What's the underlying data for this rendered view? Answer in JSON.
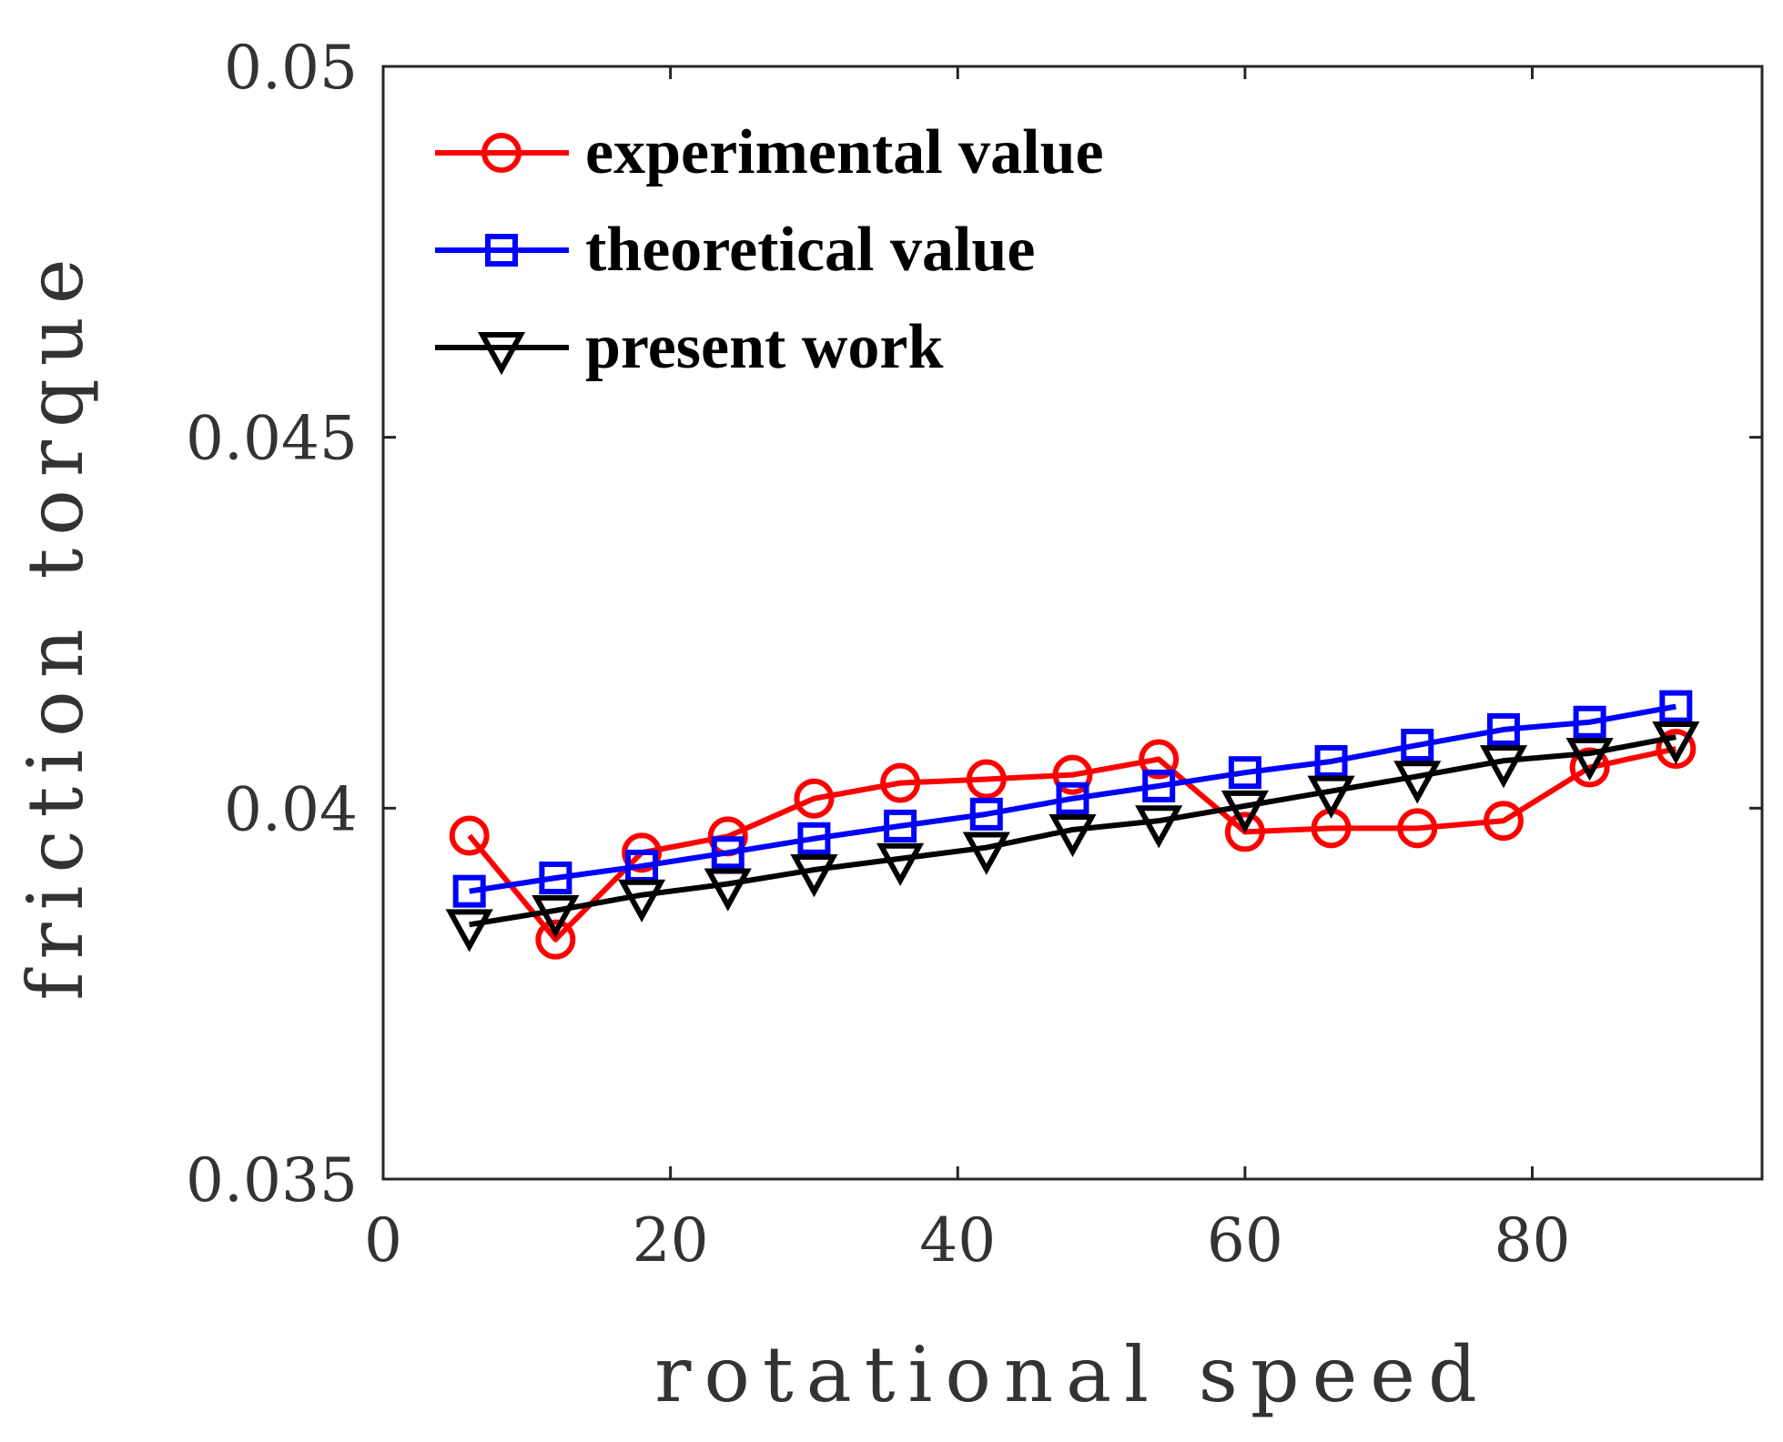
{
  "chart_data": {
    "type": "line",
    "title": "",
    "xlabel": "rotational speed",
    "ylabel": "friction torque",
    "xlim": [
      0,
      96
    ],
    "ylim": [
      0.035,
      0.05
    ],
    "xticks": [
      0,
      20,
      40,
      60,
      80
    ],
    "yticks": [
      0.035,
      0.04,
      0.045,
      0.05
    ],
    "xtick_labels": [
      "0",
      "20",
      "40",
      "60",
      "80"
    ],
    "ytick_labels": [
      "0.035",
      "0.04",
      "0.045",
      "0.05"
    ],
    "grid": false,
    "legend_position": "top-left",
    "x": [
      6,
      12,
      18,
      24,
      30,
      36,
      42,
      48,
      54,
      60,
      66,
      72,
      78,
      84,
      90
    ],
    "series": [
      {
        "name": "experimental value",
        "color": "#ff0000",
        "marker": "circle",
        "values": [
          0.03963,
          0.03823,
          0.0394,
          0.03962,
          0.04013,
          0.04034,
          0.04039,
          0.04045,
          0.04066,
          0.03968,
          0.03973,
          0.03973,
          0.03983,
          0.04055,
          0.0408
        ]
      },
      {
        "name": "theoretical value",
        "color": "#0000ff",
        "marker": "square",
        "values": [
          0.03888,
          0.03906,
          0.03922,
          0.0394,
          0.03959,
          0.03976,
          0.03992,
          0.04013,
          0.0403,
          0.04048,
          0.04063,
          0.04085,
          0.04106,
          0.04116,
          0.04137
        ]
      },
      {
        "name": "present work",
        "color": "#000000",
        "marker": "triangle-down",
        "values": [
          0.03843,
          0.03862,
          0.03883,
          0.03898,
          0.03917,
          0.03932,
          0.03947,
          0.03971,
          0.03983,
          0.04003,
          0.04023,
          0.04043,
          0.04064,
          0.04074,
          0.04096
        ]
      }
    ]
  }
}
